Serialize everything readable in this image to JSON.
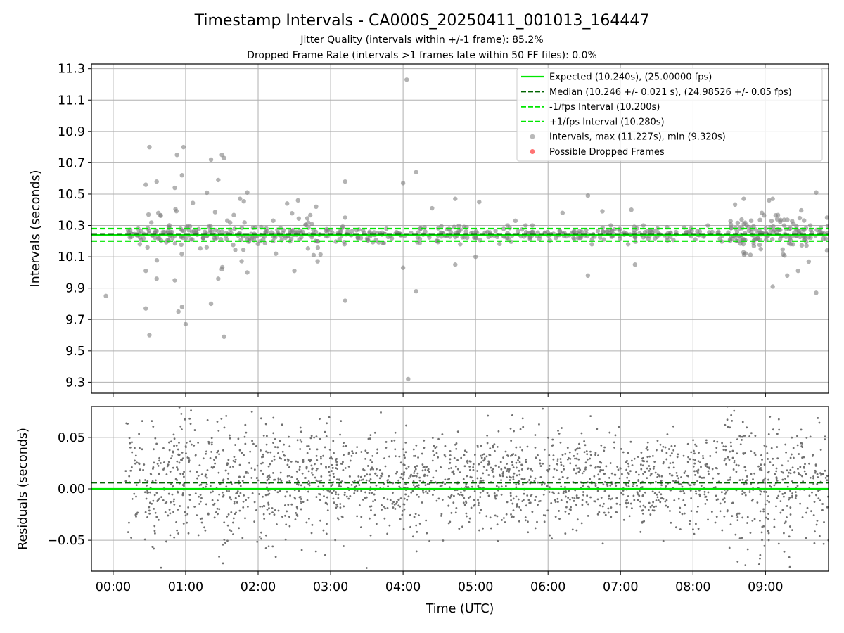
{
  "chart_data": [
    {
      "type": "scatter",
      "panel": "intervals",
      "title": "Timestamp Intervals - CA000S_20250411_001013_164447",
      "subtitle_1": "Jitter Quality (intervals within +/-1 frame): 85.2%",
      "subtitle_2": "Dropped Frame Rate (intervals >1 frames late within 50 FF files): 0.0%",
      "xlabel": "",
      "ylabel": "Intervals (seconds)",
      "x_unit": "hours since 00:00 UTC",
      "xlim": [
        -0.3,
        9.87
      ],
      "ylim": [
        9.23,
        11.33
      ],
      "yticks": [
        "9.3",
        "9.5",
        "9.7",
        "9.9",
        "10.1",
        "10.3",
        "10.5",
        "10.7",
        "10.9",
        "11.1",
        "11.3"
      ],
      "ytick_values": [
        9.3,
        9.5,
        9.7,
        9.9,
        10.1,
        10.3,
        10.5,
        10.7,
        10.9,
        11.1,
        11.3
      ],
      "grid": true,
      "legend_position": "top-right",
      "reference_lines": [
        {
          "label": "Expected (10.240s), (25.00000 fps)",
          "value": 10.24,
          "color": "#00e600",
          "style": "solid"
        },
        {
          "label": "Median (10.246 +/- 0.021 s), (24.98526 +/- 0.05 fps)",
          "value": 10.246,
          "color": "#006400",
          "style": "dashed"
        },
        {
          "label": "-1/fps Interval (10.200s)",
          "value": 10.2,
          "color": "#00e600",
          "style": "dashed"
        },
        {
          "label": "+1/fps Interval (10.280s)",
          "value": 10.28,
          "color": "#00e600",
          "style": "dashed"
        }
      ],
      "scatter_series": [
        {
          "label": "Intervals, max (11.227s), min (9.320s)",
          "color": "#808080"
        },
        {
          "label": "Possible Dropped Frames",
          "color": "#ff0000"
        }
      ],
      "x_range_data": [
        0.17,
        9.87
      ],
      "baseline_band": [
        10.18,
        10.3
      ],
      "outliers": [
        [
          -0.1,
          9.85
        ],
        [
          0.45,
          9.77
        ],
        [
          0.5,
          9.6
        ],
        [
          0.45,
          10.56
        ],
        [
          0.5,
          10.8
        ],
        [
          0.6,
          10.58
        ],
        [
          0.88,
          10.75
        ],
        [
          0.97,
          10.8
        ],
        [
          0.85,
          10.54
        ],
        [
          0.95,
          10.62
        ],
        [
          0.9,
          9.75
        ],
        [
          0.95,
          9.78
        ],
        [
          1.0,
          9.67
        ],
        [
          0.85,
          9.95
        ],
        [
          0.6,
          9.96
        ],
        [
          0.45,
          10.01
        ],
        [
          1.35,
          10.72
        ],
        [
          1.5,
          10.75
        ],
        [
          1.53,
          10.73
        ],
        [
          1.45,
          10.59
        ],
        [
          1.53,
          9.59
        ],
        [
          1.35,
          9.8
        ],
        [
          1.45,
          9.96
        ],
        [
          1.5,
          10.02
        ],
        [
          1.75,
          10.47
        ],
        [
          1.85,
          10.51
        ],
        [
          1.85,
          10.0
        ],
        [
          2.4,
          10.44
        ],
        [
          2.55,
          10.46
        ],
        [
          2.8,
          10.42
        ],
        [
          2.5,
          10.01
        ],
        [
          3.2,
          10.58
        ],
        [
          3.2,
          9.82
        ],
        [
          3.2,
          10.35
        ],
        [
          4.0,
          10.57
        ],
        [
          4.05,
          11.23
        ],
        [
          4.18,
          10.64
        ],
        [
          4.18,
          9.88
        ],
        [
          4.07,
          9.32
        ],
        [
          4.0,
          10.03
        ],
        [
          4.4,
          10.41
        ],
        [
          4.72,
          10.47
        ],
        [
          5.05,
          10.45
        ],
        [
          5.0,
          10.1
        ],
        [
          4.72,
          10.05
        ],
        [
          5.55,
          10.33
        ],
        [
          6.2,
          10.38
        ],
        [
          6.55,
          10.49
        ],
        [
          6.55,
          9.98
        ],
        [
          6.75,
          10.39
        ],
        [
          7.15,
          10.4
        ],
        [
          7.2,
          10.05
        ],
        [
          8.7,
          10.47
        ],
        [
          8.95,
          10.38
        ],
        [
          9.05,
          10.46
        ],
        [
          9.1,
          9.91
        ],
        [
          9.1,
          10.47
        ],
        [
          9.3,
          9.98
        ],
        [
          9.45,
          10.01
        ],
        [
          9.7,
          10.51
        ],
        [
          9.7,
          9.87
        ],
        [
          9.85,
          10.35
        ],
        [
          9.85,
          10.14
        ]
      ]
    },
    {
      "type": "scatter",
      "panel": "residuals",
      "xlabel": "Time (UTC)",
      "ylabel": "Residuals (seconds)",
      "xlim": [
        -0.3,
        9.87
      ],
      "ylim": [
        -0.08,
        0.08
      ],
      "xticks": [
        "00:00",
        "01:00",
        "02:00",
        "03:00",
        "04:00",
        "05:00",
        "06:00",
        "07:00",
        "08:00",
        "09:00"
      ],
      "xtick_values": [
        0,
        1,
        2,
        3,
        4,
        5,
        6,
        7,
        8,
        9
      ],
      "yticks": [
        "−0.05",
        "0.00",
        "0.05"
      ],
      "ytick_values": [
        -0.05,
        0.0,
        0.05
      ],
      "grid": true,
      "reference_lines": [
        {
          "value": 0.0,
          "color": "#00e600",
          "style": "solid"
        },
        {
          "value": 0.006,
          "color": "#006400",
          "style": "dashed"
        }
      ],
      "scatter_color": "#707070",
      "x_range_data": [
        0.17,
        9.87
      ]
    }
  ]
}
